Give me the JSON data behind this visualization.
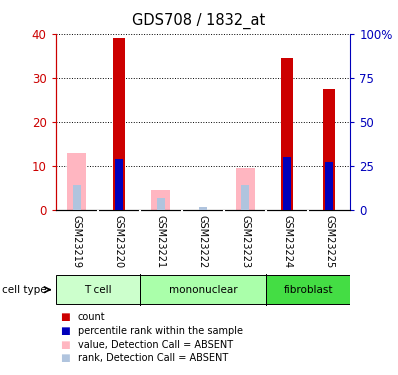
{
  "title": "GDS708 / 1832_at",
  "samples": [
    "GSM23219",
    "GSM23220",
    "GSM23221",
    "GSM23222",
    "GSM23223",
    "GSM23224",
    "GSM23225"
  ],
  "count_values": [
    0,
    39,
    0,
    0,
    0,
    34.5,
    27.5
  ],
  "rank_values": [
    0,
    29,
    0,
    0,
    0,
    30,
    27.5
  ],
  "absent_count_values": [
    13,
    0,
    4.5,
    0,
    9.5,
    0,
    0
  ],
  "absent_rank_values": [
    14,
    0,
    7,
    1.5,
    14,
    0,
    0
  ],
  "ylim_left": [
    0,
    40
  ],
  "ylim_right": [
    0,
    100
  ],
  "yticks_left": [
    0,
    10,
    20,
    30,
    40
  ],
  "ytick_labels_left": [
    "0",
    "10",
    "20",
    "30",
    "40"
  ],
  "yticks_right": [
    0,
    25,
    50,
    75,
    100
  ],
  "ytick_labels_right": [
    "0",
    "25",
    "50",
    "75",
    "100%"
  ],
  "count_color": "#CC0000",
  "rank_color": "#0000BB",
  "absent_count_color": "#FFB6C1",
  "absent_rank_color": "#B0C4DE",
  "left_axis_color": "#CC0000",
  "right_axis_color": "#0000BB",
  "sample_bg_color": "#C8C8C8",
  "sample_divider_color": "#FFFFFF",
  "groups": [
    {
      "label": "T cell",
      "start": 0,
      "end": 1,
      "color": "#CCFFCC"
    },
    {
      "label": "mononuclear",
      "start": 2,
      "end": 4,
      "color": "#AAFFAA"
    },
    {
      "label": "fibroblast",
      "start": 5,
      "end": 6,
      "color": "#44DD44"
    }
  ],
  "legend_items": [
    {
      "color": "#CC0000",
      "label": "count"
    },
    {
      "color": "#0000BB",
      "label": "percentile rank within the sample"
    },
    {
      "color": "#FFB6C1",
      "label": "value, Detection Call = ABSENT"
    },
    {
      "color": "#B0C4DE",
      "label": "rank, Detection Call = ABSENT"
    }
  ],
  "cell_type_label": "cell type",
  "figsize": [
    3.98,
    3.75
  ],
  "dpi": 100
}
